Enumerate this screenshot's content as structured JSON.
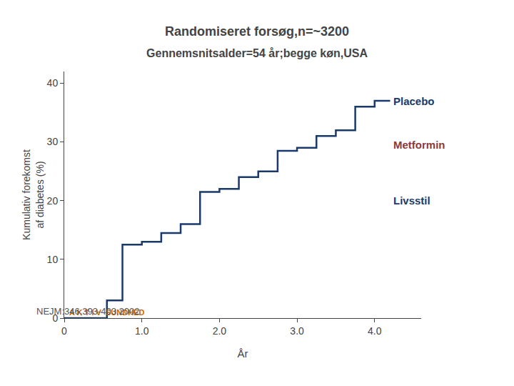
{
  "chart_data": {
    "type": "line",
    "title": "Randomiseret forsøg,n=~3200",
    "subtitle": "Gennemsnitsalder=54 år;begge køn,USA",
    "ylabel": [
      "Kumulativ forekomst",
      "af diabetes (%)"
    ],
    "xlabel": "År",
    "series": [
      {
        "color": "#1a3a6b",
        "x": [
          0,
          0.55,
          0.55,
          0.75,
          0.75,
          1.0,
          1.0,
          1.25,
          1.25,
          1.5,
          1.5,
          1.75,
          1.75,
          2.0,
          2.0,
          2.25,
          2.25,
          2.5,
          2.5,
          2.75,
          2.75,
          3.0,
          3.0,
          3.25,
          3.25,
          3.5,
          3.5,
          3.75,
          3.75,
          4.0,
          4.0,
          4.2
        ],
        "values": [
          0,
          0,
          3,
          3,
          12.5,
          12.5,
          13,
          13,
          14.5,
          14.5,
          16,
          16,
          21.5,
          21.5,
          22,
          22,
          24,
          24,
          25,
          25,
          28.5,
          28.5,
          29,
          29,
          31,
          31,
          32,
          32,
          36,
          36,
          37,
          37
        ]
      }
    ],
    "xlim": [
      0,
      4.6
    ],
    "ylim": [
      0,
      42
    ],
    "xticks": [
      0,
      {
        "value": 1.0,
        "label": "1.0"
      },
      {
        "value": 2.0,
        "label": "2.0"
      },
      {
        "value": 3.0,
        "label": "3.0"
      },
      {
        "value": 4.0,
        "label": "4.0"
      }
    ],
    "yticks": [
      0,
      10,
      20,
      30,
      40
    ],
    "grid": false,
    "annotations": [
      {
        "text": "Placebo",
        "x": 4.22,
        "y": 37.0,
        "color": "#1a3a6b"
      },
      {
        "text": "Metformin",
        "x": 4.22,
        "y": 29.5,
        "color": "#8b3a3a"
      },
      {
        "text": "Livsstil",
        "x": 4.22,
        "y": 20.0,
        "color": "#1a3a6b"
      },
      {
        "text": "A K",
        "color": "#cc6600"
      },
      {
        "text": "T",
        "color": "#cc6600"
      },
      {
        "text": "I V  SUNDHED",
        "color": "#cc6600"
      },
      {
        "text": "NEJM:346,393-403,2002",
        "color": "#555555"
      }
    ]
  }
}
